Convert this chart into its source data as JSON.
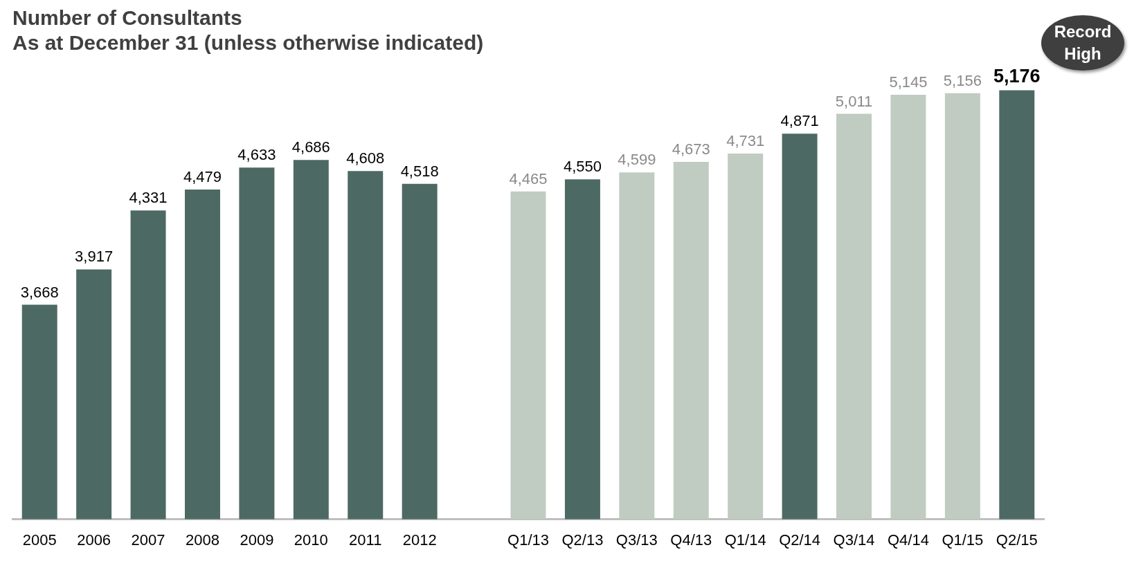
{
  "chart_data": {
    "type": "bar",
    "title": "Number of Consultants",
    "subtitle": "As at December 31 (unless otherwise indicated)",
    "categories": [
      "2005",
      "2006",
      "2007",
      "2008",
      "2009",
      "2010",
      "2011",
      "2012",
      null,
      "Q1/13",
      "Q2/13",
      "Q3/13",
      "Q4/13",
      "Q1/14",
      "Q2/14",
      "Q3/14",
      "Q4/14",
      "Q1/15",
      "Q2/15"
    ],
    "values": [
      3668,
      3917,
      4331,
      4479,
      4633,
      4686,
      4608,
      4518,
      null,
      4465,
      4550,
      4599,
      4673,
      4731,
      4871,
      5011,
      5145,
      5156,
      5176
    ],
    "colors": [
      "#4d6963",
      "#4d6963",
      "#4d6963",
      "#4d6963",
      "#4d6963",
      "#4d6963",
      "#4d6963",
      "#4d6963",
      "#4d6963",
      "#c0cbc2",
      "#4d6963",
      "#c0cbc2",
      "#c0cbc2",
      "#c0cbc2",
      "#4d6963",
      "#c0cbc2",
      "#c0cbc2",
      "#c0cbc2",
      "#4d6963"
    ],
    "value_labels": [
      "3,668",
      "3,917",
      "4,331",
      "4,479",
      "4,633",
      "4,686",
      "4,608",
      "4,518",
      null,
      "4,465",
      "4,550",
      "4,599",
      "4,673",
      "4,731",
      "4,871",
      "5,011",
      "5,145",
      "5,156",
      "5,176"
    ],
    "grid": false,
    "legend": false,
    "annotations": [
      "Record High"
    ]
  }
}
